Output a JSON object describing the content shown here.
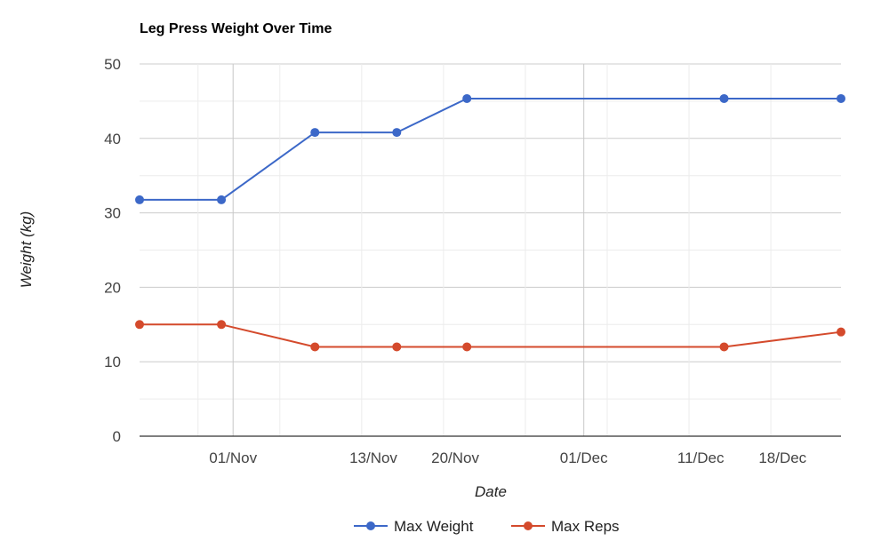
{
  "chart_data": {
    "type": "line",
    "title": "Leg Press Weight Over Time",
    "xlabel": "Date",
    "ylabel": "Weight (kg)",
    "ylim": [
      0,
      50
    ],
    "yticks": [
      0,
      10,
      20,
      30,
      40,
      50
    ],
    "xlim": [
      "2023-10-24",
      "2023-12-23"
    ],
    "xticks": [
      {
        "label": "01/Nov",
        "date": "2023-11-01"
      },
      {
        "label": "13/Nov",
        "date": "2023-11-13"
      },
      {
        "label": "20/Nov",
        "date": "2023-11-20"
      },
      {
        "label": "01/Dec",
        "date": "2023-12-01"
      },
      {
        "label": "11/Dec",
        "date": "2023-12-11"
      },
      {
        "label": "18/Dec",
        "date": "2023-12-18"
      }
    ],
    "grid": true,
    "legend": "bottom",
    "series": [
      {
        "name": "Max Weight",
        "color": "#3c68c8",
        "points": [
          {
            "date": "2023-10-24",
            "value": 31.75
          },
          {
            "date": "2023-10-31",
            "value": 31.75
          },
          {
            "date": "2023-11-08",
            "value": 40.8
          },
          {
            "date": "2023-11-15",
            "value": 40.8
          },
          {
            "date": "2023-11-21",
            "value": 45.35
          },
          {
            "date": "2023-12-13",
            "value": 45.35
          },
          {
            "date": "2023-12-23",
            "value": 45.35
          }
        ]
      },
      {
        "name": "Max Reps",
        "color": "#d44a2c",
        "points": [
          {
            "date": "2023-10-24",
            "value": 15
          },
          {
            "date": "2023-10-31",
            "value": 15
          },
          {
            "date": "2023-11-08",
            "value": 12
          },
          {
            "date": "2023-11-15",
            "value": 12
          },
          {
            "date": "2023-11-21",
            "value": 12
          },
          {
            "date": "2023-12-13",
            "value": 12
          },
          {
            "date": "2023-12-23",
            "value": 14
          }
        ]
      }
    ]
  }
}
